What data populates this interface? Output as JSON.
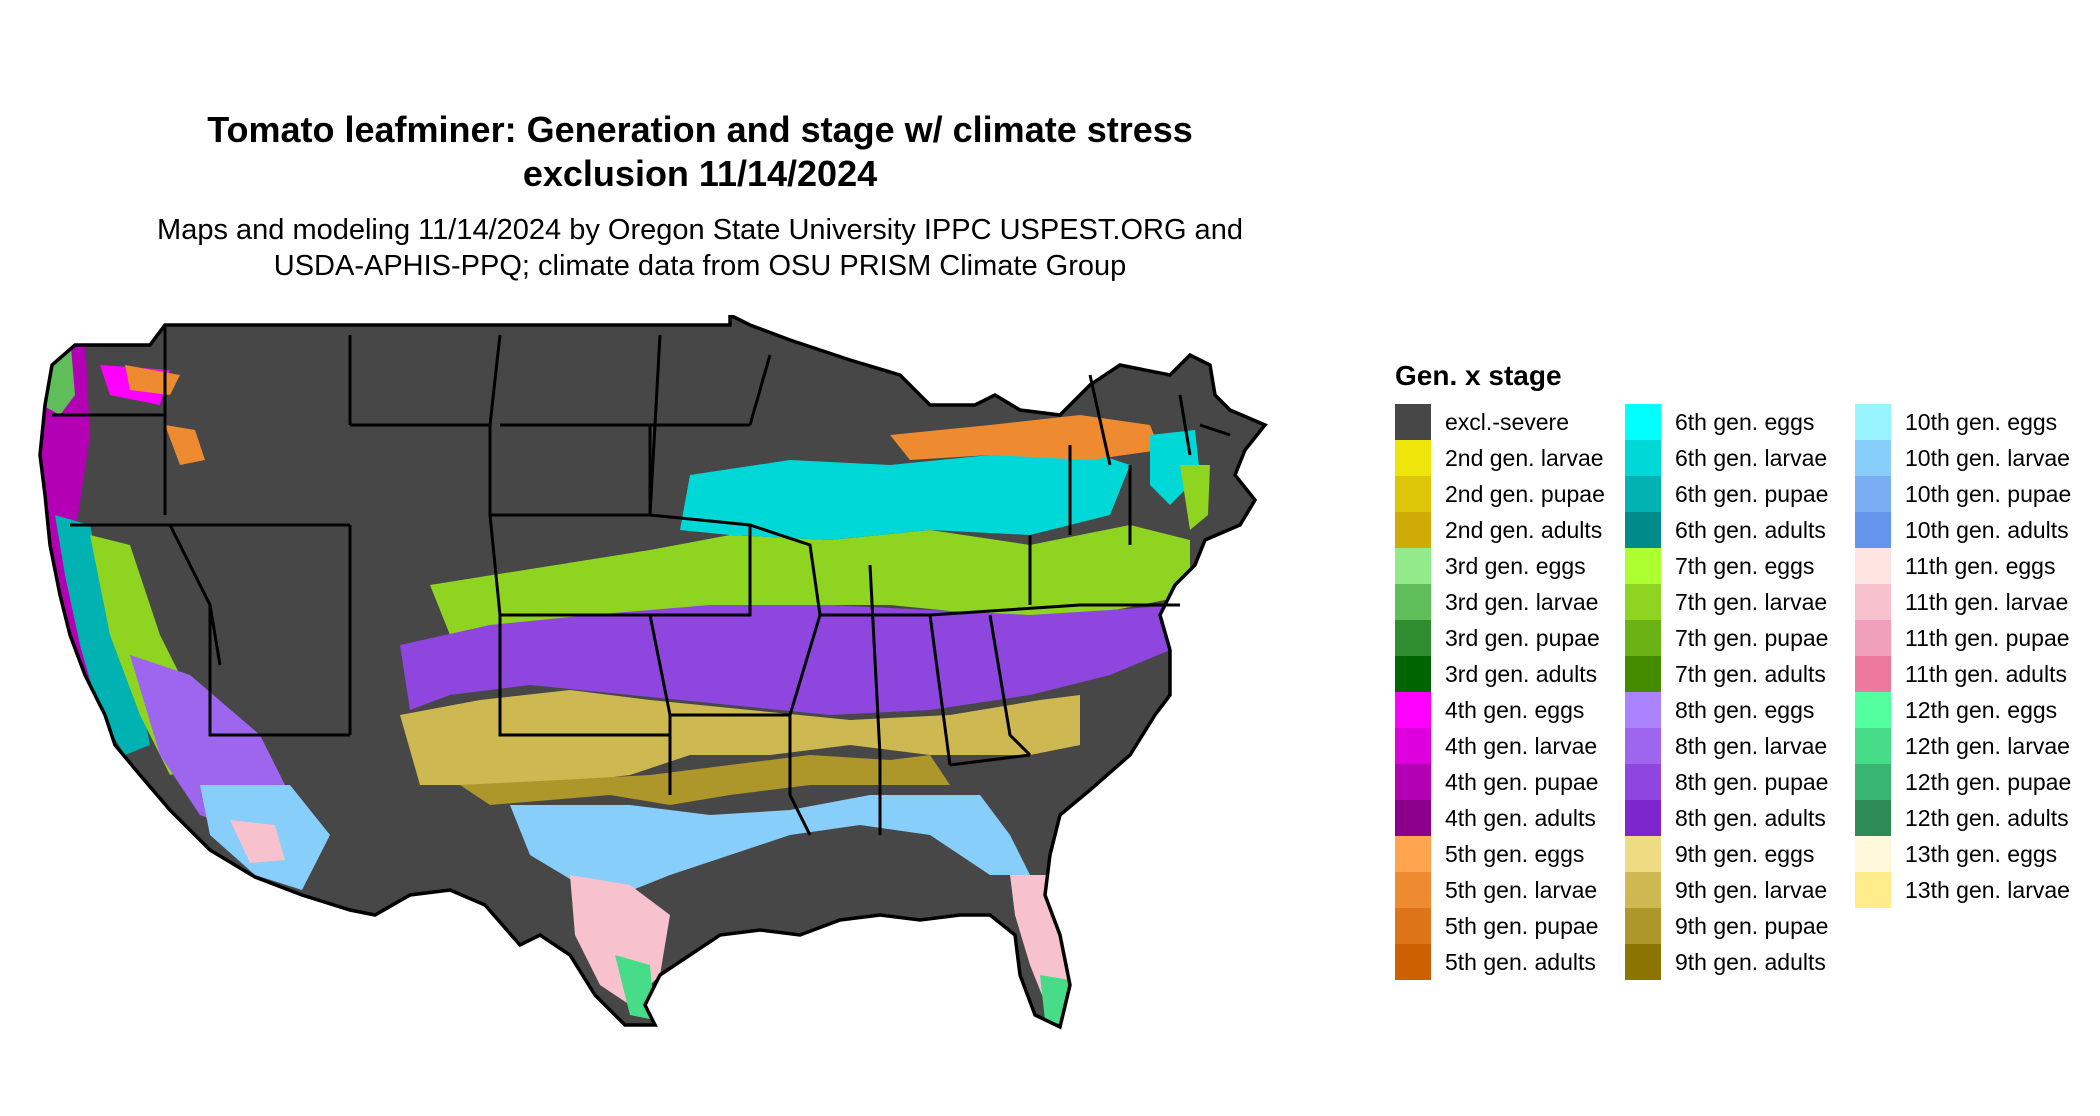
{
  "title_lines": [
    "Tomato leafminer: Generation and stage w/ climate stress",
    "exclusion 11/14/2024"
  ],
  "subtitle_lines": [
    "Maps and modeling 11/14/2024 by Oregon State University IPPC USPEST.ORG and",
    "USDA-APHIS-PPQ; climate data from OSU PRISM Climate Group"
  ],
  "legend": {
    "title": "Gen. x stage",
    "items": [
      {
        "label": "excl.-severe",
        "color": "#474747"
      },
      {
        "label": "2nd gen. larvae",
        "color": "#EEE60A"
      },
      {
        "label": "2nd gen. pupae",
        "color": "#DDC608"
      },
      {
        "label": "2nd gen. adults",
        "color": "#CFAC05"
      },
      {
        "label": "3rd gen. eggs",
        "color": "#92EA8A"
      },
      {
        "label": "3rd gen. larvae",
        "color": "#5FBE5A"
      },
      {
        "label": "3rd gen. pupae",
        "color": "#2F8D2F"
      },
      {
        "label": "3rd gen. adults",
        "color": "#006400"
      },
      {
        "label": "4th gen. eggs",
        "color": "#FF00FF"
      },
      {
        "label": "4th gen. larvae",
        "color": "#DD00DD"
      },
      {
        "label": "4th gen. pupae",
        "color": "#B400B4"
      },
      {
        "label": "4th gen. adults",
        "color": "#8B008B"
      },
      {
        "label": "5th gen. eggs",
        "color": "#FFA54F"
      },
      {
        "label": "5th gen. larvae",
        "color": "#EE8B30"
      },
      {
        "label": "5th gen. pupae",
        "color": "#DD7518"
      },
      {
        "label": "5th gen. adults",
        "color": "#CD6000"
      },
      {
        "label": "6th gen. eggs",
        "color": "#00FFFF"
      },
      {
        "label": "6th gen. larvae",
        "color": "#00D8D8"
      },
      {
        "label": "6th gen. pupae",
        "color": "#00B2B2"
      },
      {
        "label": "6th gen. adults",
        "color": "#008B8B"
      },
      {
        "label": "7th gen. eggs",
        "color": "#ADFF2F"
      },
      {
        "label": "7th gen. larvae",
        "color": "#8ED421"
      },
      {
        "label": "7th gen. pupae",
        "color": "#6BB214"
      },
      {
        "label": "7th gen. adults",
        "color": "#458B00"
      },
      {
        "label": "8th gen. eggs",
        "color": "#AB82FF"
      },
      {
        "label": "8th gen. larvae",
        "color": "#9E65EE"
      },
      {
        "label": "8th gen. pupae",
        "color": "#8E46DE"
      },
      {
        "label": "8th gen. adults",
        "color": "#7D26CD"
      },
      {
        "label": "9th gen. eggs",
        "color": "#EEDC82"
      },
      {
        "label": "9th gen. larvae",
        "color": "#CDB852"
      },
      {
        "label": "9th gen. pupae",
        "color": "#AD962A"
      },
      {
        "label": "9th gen. adults",
        "color": "#8B7500"
      },
      {
        "label": "10th gen. eggs",
        "color": "#98F5FF"
      },
      {
        "label": "10th gen. larvae",
        "color": "#87CEFA"
      },
      {
        "label": "10th gen. pupae",
        "color": "#79AEF3"
      },
      {
        "label": "10th gen. adults",
        "color": "#6495ED"
      },
      {
        "label": "11th gen. eggs",
        "color": "#FFE4E1"
      },
      {
        "label": "11th gen. larvae",
        "color": "#F7C2CE"
      },
      {
        "label": "11th gen. pupae",
        "color": "#F0A0BA"
      },
      {
        "label": "11th gen. adults",
        "color": "#EE799F"
      },
      {
        "label": "12th gen. eggs",
        "color": "#54FF9F"
      },
      {
        "label": "12th gen. larvae",
        "color": "#46DC88"
      },
      {
        "label": "12th gen. pupae",
        "color": "#3AB674"
      },
      {
        "label": "12th gen. adults",
        "color": "#2E8B57"
      },
      {
        "label": "13th gen. eggs",
        "color": "#FFF8DC"
      },
      {
        "label": "13th gen. larvae",
        "color": "#FFEC8B"
      }
    ]
  }
}
